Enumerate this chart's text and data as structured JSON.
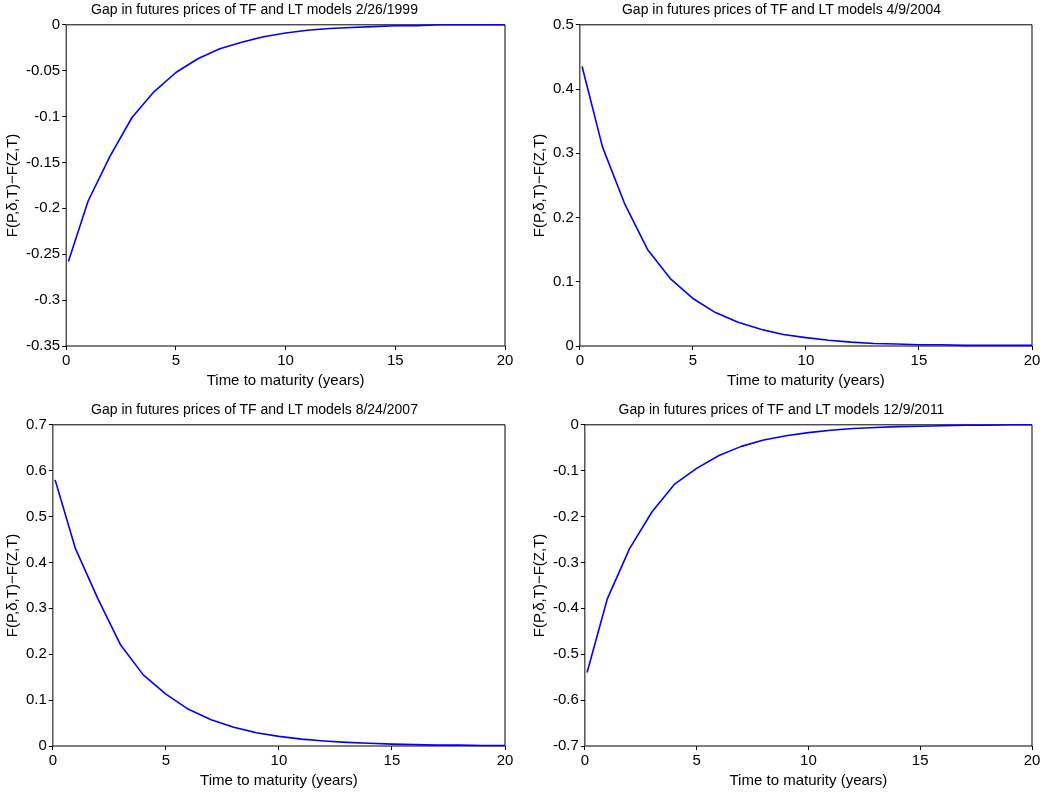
{
  "chart_data": [
    {
      "type": "line",
      "title": "Gap in futures prices of TF and LT models 2/26/1999",
      "xlabel": "Time to maturity (years)",
      "ylabel": "F(P,δ,T)−F(Z,T)",
      "marker": "none",
      "x": [
        0.1,
        1,
        2,
        3,
        4,
        5,
        6,
        7,
        8,
        9,
        10,
        11,
        12,
        13,
        14,
        15,
        16,
        17,
        18,
        19,
        20
      ],
      "xlim": [
        0,
        20
      ],
      "xticks": [
        0,
        5,
        10,
        15,
        20
      ],
      "ylim": [
        -0.35,
        0
      ],
      "yticks": [
        -0.35,
        -0.3,
        -0.25,
        -0.2,
        -0.15,
        -0.1,
        -0.05,
        0
      ],
      "series": [
        {
          "color": "#0000ff",
          "values": [
            -0.258,
            -0.192,
            -0.143,
            -0.101,
            -0.073,
            -0.052,
            -0.037,
            -0.026,
            -0.019,
            -0.013,
            -0.009,
            -0.006,
            -0.004,
            -0.003,
            -0.002,
            -0.001,
            -0.001,
            0,
            0,
            0,
            0
          ]
        }
      ]
    },
    {
      "type": "line",
      "title": "Gap in futures prices of TF and LT models 4/9/2004",
      "xlabel": "Time to maturity (years)",
      "ylabel": "F(P,δ,T)−F(Z,T)",
      "marker": "none",
      "x": [
        0.1,
        1,
        2,
        3,
        4,
        5,
        6,
        7,
        8,
        9,
        10,
        11,
        12,
        13,
        14,
        15,
        16,
        17,
        18,
        19,
        20
      ],
      "xlim": [
        0,
        20
      ],
      "xticks": [
        0,
        5,
        10,
        15,
        20
      ],
      "ylim": [
        0,
        0.5
      ],
      "yticks": [
        0,
        0.1,
        0.2,
        0.3,
        0.4,
        0.5
      ],
      "series": [
        {
          "color": "#0000ff",
          "values": [
            0.435,
            0.31,
            0.22,
            0.15,
            0.105,
            0.074,
            0.052,
            0.037,
            0.026,
            0.018,
            0.013,
            0.009,
            0.006,
            0.004,
            0.003,
            0.002,
            0.002,
            0.001,
            0.001,
            0.001,
            0.001
          ]
        }
      ]
    },
    {
      "type": "line",
      "title": "Gap in futures prices of TF and LT models 8/24/2007",
      "xlabel": "Time to maturity (years)",
      "ylabel": "F(P,δ,T)−F(Z,T)",
      "marker": "none",
      "x": [
        0.1,
        1,
        2,
        3,
        4,
        5,
        6,
        7,
        8,
        9,
        10,
        11,
        12,
        13,
        14,
        15,
        16,
        17,
        18,
        19,
        20
      ],
      "xlim": [
        0,
        20
      ],
      "xticks": [
        0,
        5,
        10,
        15,
        20
      ],
      "ylim": [
        0,
        0.7
      ],
      "yticks": [
        0,
        0.1,
        0.2,
        0.3,
        0.4,
        0.5,
        0.6,
        0.7
      ],
      "series": [
        {
          "color": "#0000ff",
          "values": [
            0.58,
            0.43,
            0.32,
            0.22,
            0.155,
            0.113,
            0.08,
            0.057,
            0.041,
            0.029,
            0.021,
            0.015,
            0.011,
            0.008,
            0.006,
            0.004,
            0.003,
            0.002,
            0.002,
            0.001,
            0.001
          ]
        }
      ]
    },
    {
      "type": "line",
      "title": "Gap in futures prices of TF and LT models 12/9/2011",
      "xlabel": "Time to maturity (years)",
      "ylabel": "F(P,δ,T)−F(Z,T)",
      "marker": "none",
      "x": [
        0.1,
        1,
        2,
        3,
        4,
        5,
        6,
        7,
        8,
        9,
        10,
        11,
        12,
        13,
        14,
        15,
        16,
        17,
        18,
        19,
        20
      ],
      "xlim": [
        0,
        20
      ],
      "xticks": [
        0,
        5,
        10,
        15,
        20
      ],
      "ylim": [
        -0.7,
        0
      ],
      "yticks": [
        -0.7,
        -0.6,
        -0.5,
        -0.4,
        -0.3,
        -0.2,
        -0.1,
        0
      ],
      "series": [
        {
          "color": "#0000ff",
          "values": [
            -0.54,
            -0.38,
            -0.27,
            -0.19,
            -0.13,
            -0.095,
            -0.067,
            -0.047,
            -0.033,
            -0.024,
            -0.017,
            -0.012,
            -0.008,
            -0.006,
            -0.004,
            -0.003,
            -0.002,
            -0.001,
            -0.001,
            0,
            0
          ]
        }
      ]
    }
  ]
}
